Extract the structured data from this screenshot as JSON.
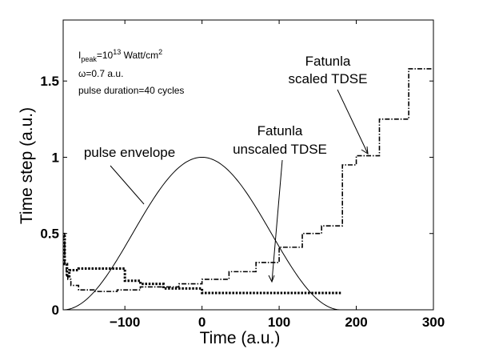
{
  "chart_data": {
    "type": "line",
    "title": "",
    "xlabel": "Time (a.u.)",
    "ylabel": "Time step (a.u.)",
    "xlim": [
      -180,
      300
    ],
    "ylim": [
      0,
      1.9
    ],
    "xticks": [
      -100,
      0,
      100,
      200,
      300
    ],
    "yticks": [
      0,
      0.5,
      1,
      1.5
    ],
    "xtick_labels": [
      "−100",
      "0",
      "100",
      "200",
      "300"
    ],
    "ytick_labels": [
      "0",
      "0.5",
      "1",
      "1.5"
    ],
    "grid": false,
    "info_box": {
      "line1": {
        "base": "I",
        "sub": "peak",
        "mid": "=10",
        "sup": "13",
        "rest": " Watt/cm",
        "sup2": "2"
      },
      "line2": "ω=0.7 a.u.",
      "line3": "pulse duration=40 cycles"
    },
    "annotations": {
      "scaled_line1": "Fatunla",
      "scaled_line2": "scaled TDSE",
      "unscaled_line1": "Fatunla",
      "unscaled_line2": "unscaled TDSE",
      "envelope": "pulse envelope"
    },
    "series": [
      {
        "style": "solid",
        "kind": "envelope",
        "x_start": -180,
        "x_end": 180,
        "peak": 1.0,
        "center": 0,
        "note": ""
      },
      {
        "style": "dashdot",
        "kind": "step",
        "x": [
          -180,
          -178,
          -176,
          -174,
          -170,
          -160,
          -140,
          -110,
          -80,
          -30,
          0,
          35,
          70,
          100,
          130,
          155,
          182,
          200,
          230,
          268,
          300
        ],
        "y": [
          0.5,
          0.3,
          0.22,
          0.2,
          0.16,
          0.13,
          0.12,
          0.13,
          0.15,
          0.17,
          0.2,
          0.25,
          0.31,
          0.41,
          0.5,
          0.55,
          0.95,
          1.01,
          1.25,
          1.58,
          1.58
        ]
      },
      {
        "style": "dotted",
        "kind": "step",
        "x": [
          -180,
          -178,
          -175,
          -172,
          -160,
          -100,
          -80,
          -50,
          0,
          50,
          100,
          140,
          180
        ],
        "y": [
          0.48,
          0.3,
          0.22,
          0.26,
          0.27,
          0.19,
          0.17,
          0.14,
          0.11,
          0.11,
          0.11,
          0.11,
          0.11
        ]
      }
    ]
  }
}
